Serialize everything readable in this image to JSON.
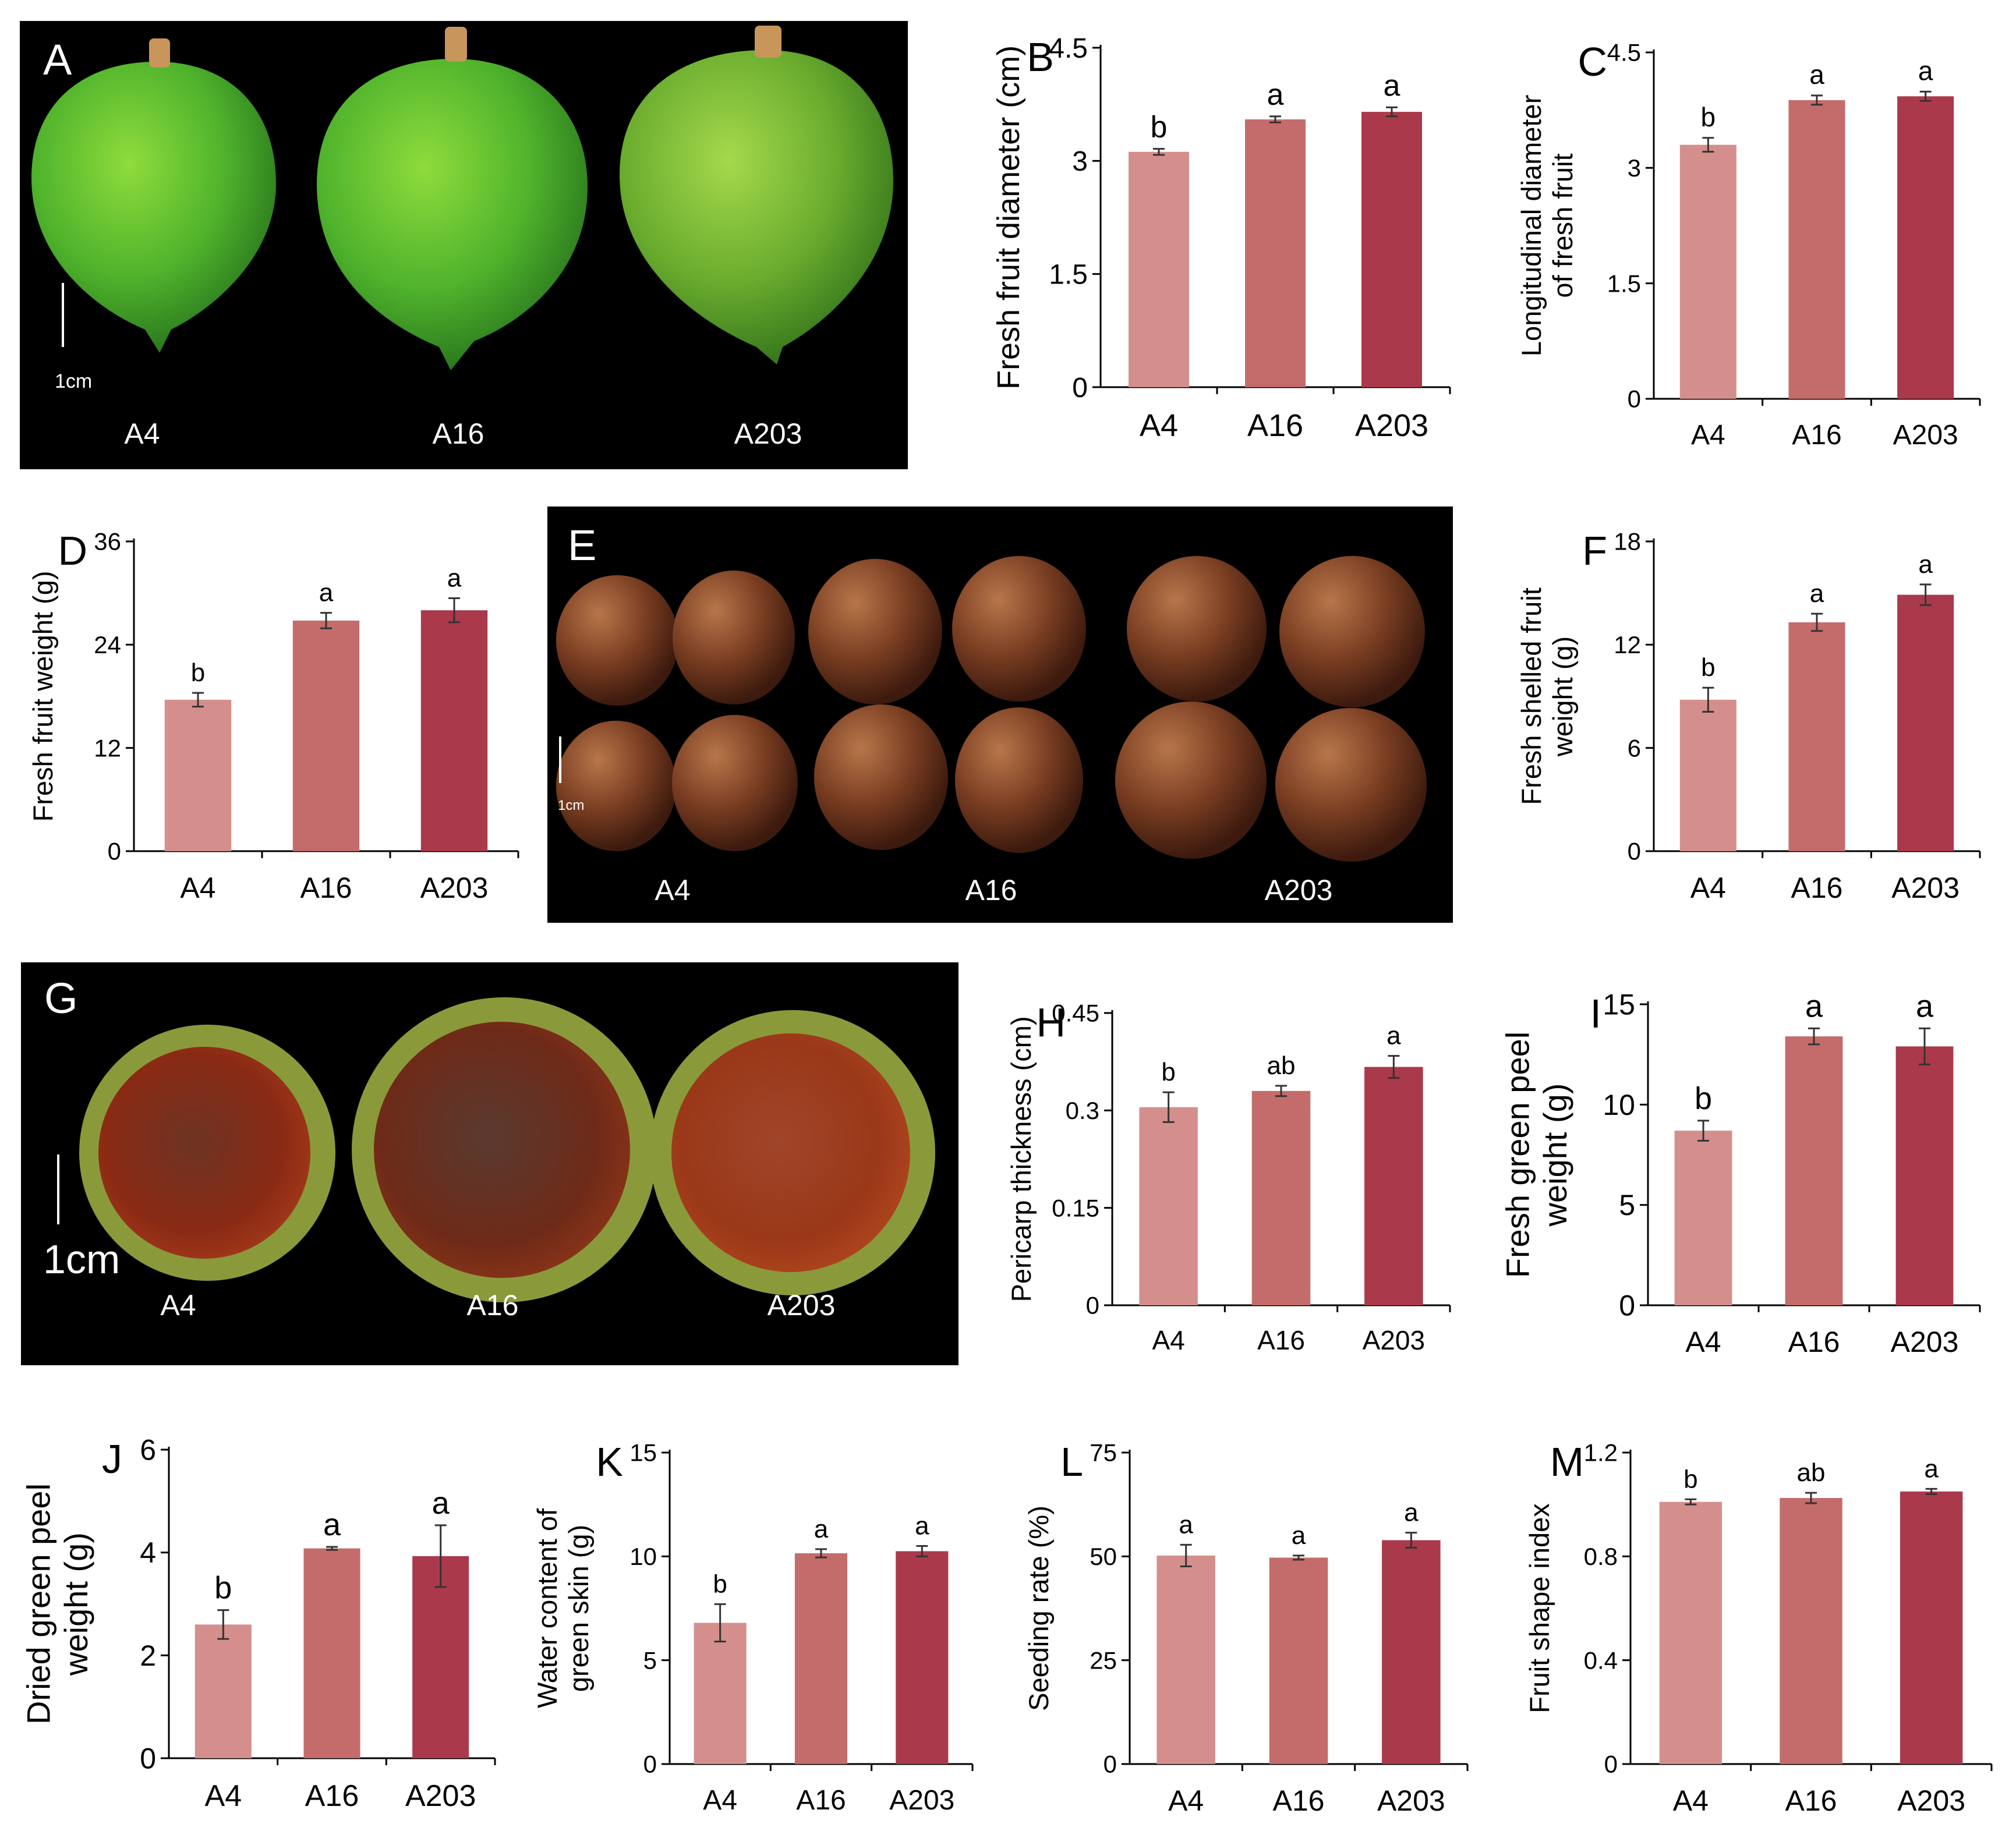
{
  "figure": {
    "photos": {
      "A": {
        "label": "A",
        "scale": "1cm",
        "tags": [
          "A4",
          "A16",
          "A203"
        ]
      },
      "E": {
        "label": "E",
        "scale": "1cm",
        "tags": [
          "A4",
          "A16",
          "A203"
        ]
      },
      "G": {
        "label": "G",
        "scale": "1cm",
        "tags": [
          "A4",
          "A16",
          "A203"
        ]
      }
    },
    "bar_colors": [
      "#d48f8c",
      "#c46c6c",
      "#aa3a4b"
    ]
  },
  "chart_data": [
    {
      "id": "B",
      "type": "bar",
      "panel_label": "B",
      "title": "",
      "xlabel": "",
      "ylabel": [
        "Fresh fruit diameter (cm)"
      ],
      "categories": [
        "A4",
        "A16",
        "A203"
      ],
      "values": [
        3.12,
        3.55,
        3.65
      ],
      "errors": [
        0.04,
        0.04,
        0.06
      ],
      "letters": [
        "b",
        "a",
        "a"
      ],
      "ylim": [
        0,
        4.5
      ],
      "ticks": [
        {
          "v": 0,
          "t": "0"
        },
        {
          "v": 1.5,
          "t": "1.5"
        },
        {
          "v": 3,
          "t": "3"
        },
        {
          "v": 4.5,
          "t": "4.5"
        }
      ]
    },
    {
      "id": "C",
      "type": "bar",
      "panel_label": "C",
      "title": "",
      "xlabel": "",
      "ylabel": [
        "Longitudinal diameter",
        "of fresh fruit"
      ],
      "categories": [
        "A4",
        "A16",
        "A203"
      ],
      "values": [
        3.3,
        3.88,
        3.93
      ],
      "errors": [
        0.09,
        0.06,
        0.06
      ],
      "letters": [
        "b",
        "a",
        "a"
      ],
      "ylim": [
        0,
        4.5
      ],
      "ticks": [
        {
          "v": 0,
          "t": "0"
        },
        {
          "v": 1.5,
          "t": "1.5"
        },
        {
          "v": 3,
          "t": "3"
        },
        {
          "v": 4.5,
          "t": "4.5"
        }
      ]
    },
    {
      "id": "D",
      "type": "bar",
      "panel_label": "D",
      "title": "",
      "xlabel": "",
      "ylabel": [
        "Fresh fruit weight (g)"
      ],
      "categories": [
        "A4",
        "A16",
        "A203"
      ],
      "values": [
        17.6,
        26.8,
        28.0
      ],
      "errors": [
        0.8,
        0.9,
        1.4
      ],
      "letters": [
        "b",
        "a",
        "a"
      ],
      "ylim": [
        0,
        36
      ],
      "ticks": [
        {
          "v": 0,
          "t": "0"
        },
        {
          "v": 12,
          "t": "12"
        },
        {
          "v": 24,
          "t": "24"
        },
        {
          "v": 36,
          "t": "36"
        }
      ]
    },
    {
      "id": "F",
      "type": "bar",
      "panel_label": "F",
      "title": "",
      "xlabel": "",
      "ylabel": [
        "Fresh shelled fruit",
        "weight (g)"
      ],
      "categories": [
        "A4",
        "A16",
        "A203"
      ],
      "values": [
        8.8,
        13.3,
        14.9
      ],
      "errors": [
        0.7,
        0.5,
        0.6
      ],
      "letters": [
        "b",
        "a",
        "a"
      ],
      "ylim": [
        0,
        18
      ],
      "ticks": [
        {
          "v": 0,
          "t": "0"
        },
        {
          "v": 6,
          "t": "6"
        },
        {
          "v": 12,
          "t": "12"
        },
        {
          "v": 18,
          "t": "18"
        }
      ]
    },
    {
      "id": "H",
      "type": "bar",
      "panel_label": "H",
      "title": "",
      "xlabel": "",
      "ylabel": [
        "Pericarp thickness (cm)"
      ],
      "categories": [
        "A4",
        "A16",
        "A203"
      ],
      "values": [
        0.305,
        0.33,
        0.367
      ],
      "errors": [
        0.023,
        0.008,
        0.017
      ],
      "letters": [
        "b",
        "ab",
        "a"
      ],
      "ylim": [
        0,
        0.45
      ],
      "ticks": [
        {
          "v": 0,
          "t": "0"
        },
        {
          "v": 0.15,
          "t": "0.15"
        },
        {
          "v": 0.3,
          "t": "0.3"
        },
        {
          "v": 0.45,
          "t": "0.45"
        }
      ]
    },
    {
      "id": "I",
      "type": "bar",
      "panel_label": "I",
      "title": "",
      "xlabel": "",
      "ylabel": [
        "Fresh green peel",
        "weight (g)"
      ],
      "categories": [
        "A4",
        "A16",
        "A203"
      ],
      "values": [
        8.7,
        13.4,
        12.9
      ],
      "errors": [
        0.5,
        0.4,
        0.9
      ],
      "letters": [
        "b",
        "a",
        "a"
      ],
      "ylim": [
        0,
        15
      ],
      "ticks": [
        {
          "v": 0,
          "t": "0"
        },
        {
          "v": 5,
          "t": "5"
        },
        {
          "v": 10,
          "t": "10"
        },
        {
          "v": 15,
          "t": "15"
        }
      ]
    },
    {
      "id": "J",
      "type": "bar",
      "panel_label": "J",
      "title": "",
      "xlabel": "",
      "ylabel": [
        "Dried green peel",
        "weight (g)"
      ],
      "categories": [
        "A4",
        "A16",
        "A203"
      ],
      "values": [
        2.6,
        4.08,
        3.93
      ],
      "errors": [
        0.28,
        0.03,
        0.6
      ],
      "letters": [
        "b",
        "a",
        "a"
      ],
      "ylim": [
        0,
        6
      ],
      "ticks": [
        {
          "v": 0,
          "t": "0"
        },
        {
          "v": 2,
          "t": "2"
        },
        {
          "v": 4,
          "t": "4"
        },
        {
          "v": 6,
          "t": "6"
        }
      ]
    },
    {
      "id": "K",
      "type": "bar",
      "panel_label": "K",
      "title": "",
      "xlabel": "",
      "ylabel": [
        "Water content of",
        "green skin (g)"
      ],
      "categories": [
        "A4",
        "A16",
        "A203"
      ],
      "values": [
        6.8,
        10.15,
        10.25
      ],
      "errors": [
        0.9,
        0.2,
        0.25
      ],
      "letters": [
        "b",
        "a",
        "a"
      ],
      "ylim": [
        0,
        15
      ],
      "ticks": [
        {
          "v": 0,
          "t": "0"
        },
        {
          "v": 5,
          "t": "5"
        },
        {
          "v": 10,
          "t": "10"
        },
        {
          "v": 15,
          "t": "15"
        }
      ]
    },
    {
      "id": "L",
      "type": "bar",
      "panel_label": "L",
      "title": "",
      "xlabel": "",
      "ylabel": [
        "Seeding rate (%)"
      ],
      "categories": [
        "A4",
        "A16",
        "A203"
      ],
      "values": [
        50.2,
        49.7,
        53.9
      ],
      "errors": [
        2.6,
        0.5,
        1.8
      ],
      "letters": [
        "a",
        "a",
        "a"
      ],
      "ylim": [
        0,
        75
      ],
      "ticks": [
        {
          "v": 0,
          "t": "0"
        },
        {
          "v": 25,
          "t": "25"
        },
        {
          "v": 50,
          "t": "50"
        },
        {
          "v": 75,
          "t": "75"
        }
      ]
    },
    {
      "id": "M",
      "type": "bar",
      "panel_label": "M",
      "title": "",
      "xlabel": "",
      "ylabel": [
        "Fruit shape index"
      ],
      "categories": [
        "A4",
        "A16",
        "A203"
      ],
      "values": [
        1.01,
        1.025,
        1.05
      ],
      "errors": [
        0.01,
        0.02,
        0.01
      ],
      "letters": [
        "b",
        "ab",
        "a"
      ],
      "ylim": [
        0,
        1.2
      ],
      "ticks": [
        {
          "v": 0,
          "t": "0"
        },
        {
          "v": 0.4,
          "t": "0.4"
        },
        {
          "v": 0.8,
          "t": "0.8"
        },
        {
          "v": 1.2,
          "t": "1.2"
        }
      ]
    }
  ]
}
